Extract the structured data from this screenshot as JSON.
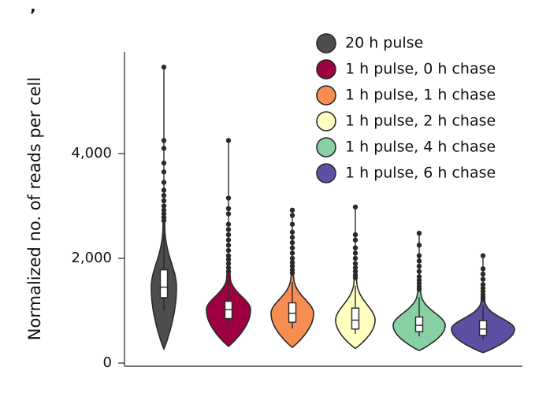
{
  "chart_data": {
    "type": "violin",
    "panel_mark": "’",
    "ylabel": "Normalized no. of reads per cell",
    "xlabel": "",
    "ylim": [
      0,
      6000
    ],
    "yticks": [
      0,
      2000,
      4000
    ],
    "ytick_labels": [
      "0",
      "2,000",
      "4,000"
    ],
    "legend_position": "top-right",
    "series": [
      {
        "name": "20 h pulse",
        "color": "#4d4d4d",
        "min": 270,
        "q1": 1250,
        "median": 1450,
        "q3": 1780,
        "whisker_high": 2650,
        "max": 5650,
        "outliers": [
          5650,
          4250,
          4100,
          3820,
          3650,
          3450,
          3300,
          3200,
          3100,
          3000,
          2920,
          2850,
          2780,
          2720
        ]
      },
      {
        "name": "1 h pulse, 0 h chase",
        "color": "#9e0142",
        "min": 320,
        "q1": 850,
        "median": 1020,
        "q3": 1180,
        "whisker_high": 1680,
        "max": 4250,
        "outliers": [
          4250,
          3150,
          2950,
          2850,
          2650,
          2550,
          2450,
          2350,
          2250,
          2150,
          2050,
          1980,
          1900,
          1820,
          1750
        ]
      },
      {
        "name": "1 h pulse, 1 h chase",
        "color": "#f88d52",
        "min": 300,
        "q1": 780,
        "median": 950,
        "q3": 1150,
        "whisker_high": 1650,
        "max": 2920,
        "outliers": [
          2920,
          2820,
          2650,
          2500,
          2400,
          2300,
          2200,
          2100,
          2000,
          1920,
          1850,
          1780,
          1720
        ]
      },
      {
        "name": "1 h pulse, 2 h chase",
        "color": "#ffffbf",
        "min": 280,
        "q1": 650,
        "median": 820,
        "q3": 1050,
        "whisker_high": 1580,
        "max": 2980,
        "outliers": [
          2980,
          2450,
          2350,
          2200,
          2100,
          2000,
          1900,
          1820,
          1750,
          1680,
          1630
        ]
      },
      {
        "name": "1 h pulse, 4 h chase",
        "color": "#88d0a4",
        "min": 240,
        "q1": 600,
        "median": 720,
        "q3": 880,
        "whisker_high": 1350,
        "max": 2480,
        "outliers": [
          2480,
          2250,
          2050,
          1950,
          1850,
          1750,
          1650,
          1580,
          1520,
          1460,
          1410
        ]
      },
      {
        "name": "1 h pulse, 6 h chase",
        "color": "#5e4fa2",
        "min": 200,
        "q1": 530,
        "median": 650,
        "q3": 810,
        "whisker_high": 1180,
        "max": 2050,
        "outliers": [
          2050,
          1800,
          1700,
          1600,
          1500,
          1430,
          1370,
          1310,
          1260,
          1220
        ]
      }
    ]
  }
}
